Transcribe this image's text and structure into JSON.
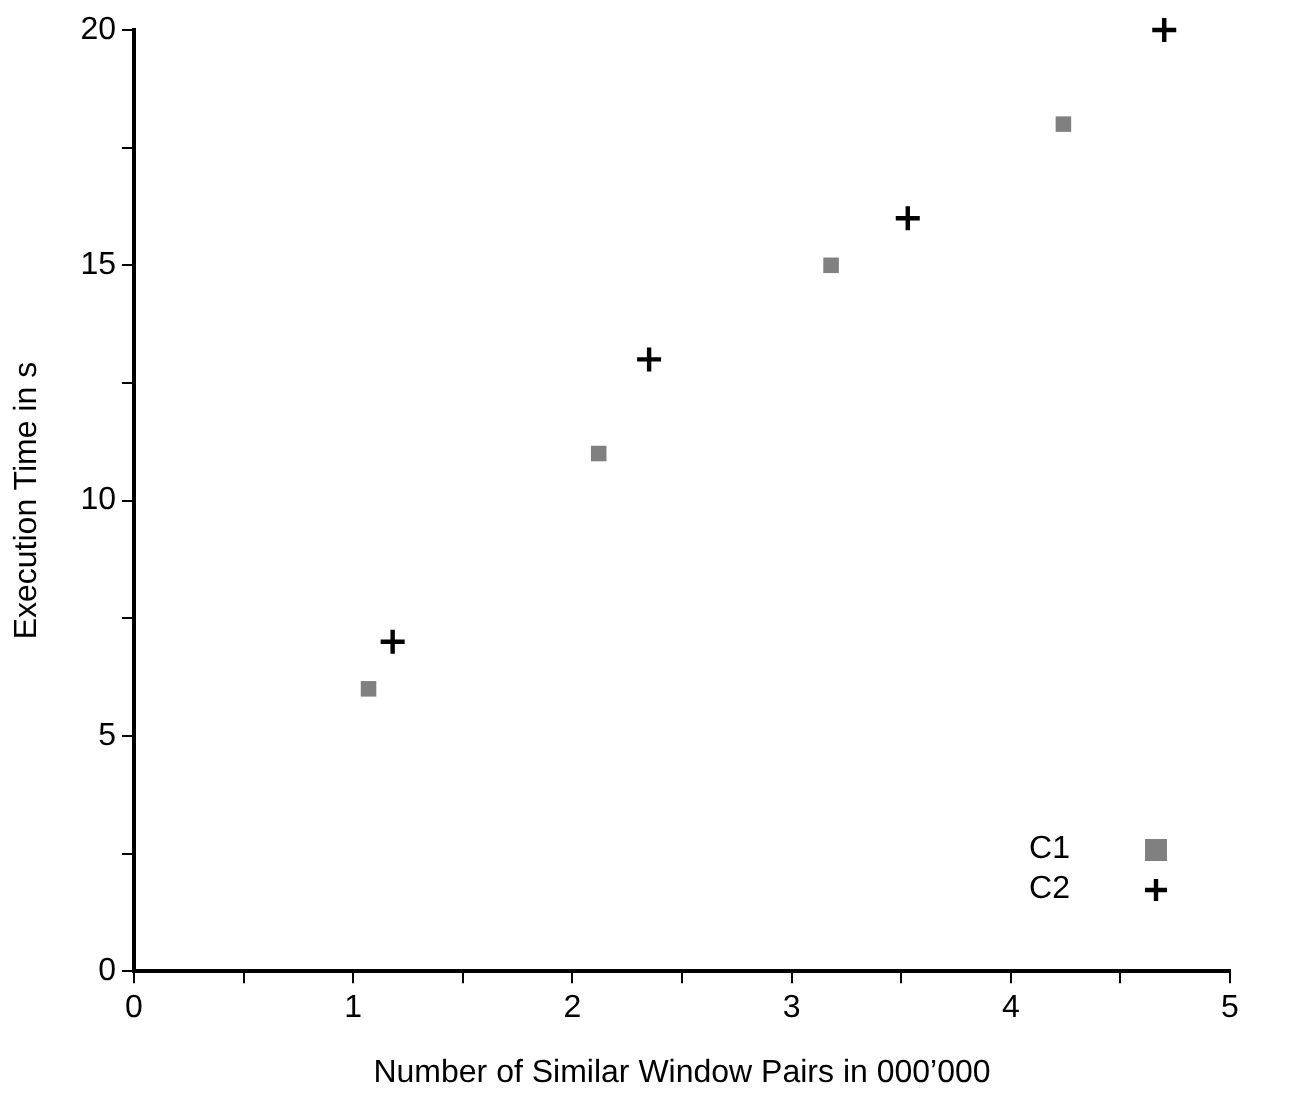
{
  "chart_data": {
    "type": "scatter",
    "xlabel": "Number of Similar Window Pairs in 000’000",
    "ylabel": "Execution Time in s",
    "series": [
      {
        "name": "C1",
        "color": "#808080",
        "marker": "square",
        "x": [
          1.07,
          2.12,
          3.18,
          4.24
        ],
        "values": [
          6,
          11,
          15,
          18
        ]
      },
      {
        "name": "C2",
        "color": "#000000",
        "marker": "cross",
        "x": [
          1.18,
          2.35,
          3.53,
          4.7
        ],
        "values": [
          7,
          13,
          16,
          20
        ]
      }
    ],
    "xlim": [
      0,
      5
    ],
    "xticks": [
      0,
      {
        "value": 0.5,
        "label": null
      },
      1,
      {
        "value": 1.5,
        "label": null
      },
      2,
      {
        "value": 2.5,
        "label": null
      },
      3,
      {
        "value": 3.5,
        "label": null
      },
      4,
      {
        "value": 4.5,
        "label": null
      },
      5
    ],
    "ylim": [
      0,
      20
    ],
    "yticks": [
      0,
      {
        "value": 2.5,
        "label": null
      },
      5,
      {
        "value": 7.5,
        "label": null
      },
      10,
      {
        "value": 12.5,
        "label": null
      },
      15,
      {
        "value": 17.5,
        "label": null
      },
      20
    ],
    "legend": "bottom right"
  }
}
